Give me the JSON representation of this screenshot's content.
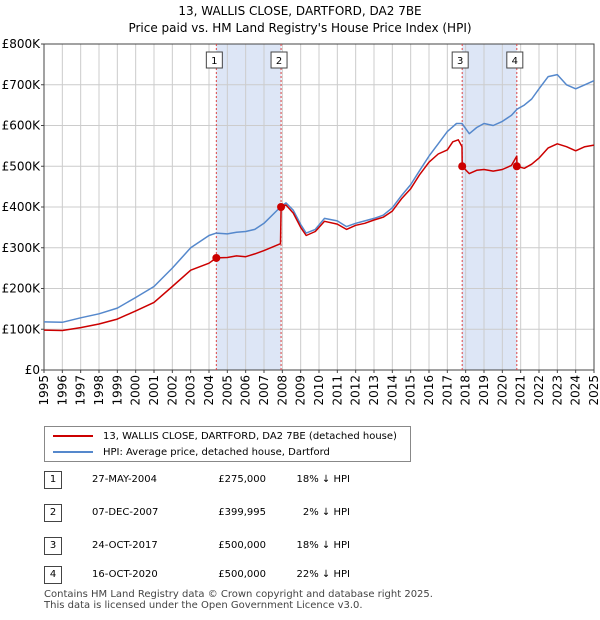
{
  "chart_data": {
    "type": "line",
    "title": "13, WALLIS CLOSE, DARTFORD, DA2 7BE",
    "subtitle": "Price paid vs. HM Land Registry's House Price Index (HPI)",
    "xlim": [
      1995,
      2025
    ],
    "ylim": [
      0,
      800000
    ],
    "x_ticks": [
      "1995",
      "1996",
      "1997",
      "1998",
      "1999",
      "2000",
      "2001",
      "2002",
      "2003",
      "2004",
      "2005",
      "2006",
      "2007",
      "2008",
      "2009",
      "2010",
      "2011",
      "2012",
      "2013",
      "2014",
      "2015",
      "2016",
      "2017",
      "2018",
      "2019",
      "2020",
      "2021",
      "2022",
      "2023",
      "2024",
      "2025"
    ],
    "y_ticks": [
      {
        "value": 0,
        "label": "£0"
      },
      {
        "value": 100000,
        "label": "£100K"
      },
      {
        "value": 200000,
        "label": "£200K"
      },
      {
        "value": 300000,
        "label": "£300K"
      },
      {
        "value": 400000,
        "label": "£400K"
      },
      {
        "value": 500000,
        "label": "£500K"
      },
      {
        "value": 600000,
        "label": "£600K"
      },
      {
        "value": 700000,
        "label": "£700K"
      },
      {
        "value": 800000,
        "label": "£800K"
      }
    ],
    "series": [
      {
        "name": "13, WALLIS CLOSE, DARTFORD, DA2 7BE (detached house)",
        "color": "#cc0000",
        "points": [
          [
            1995,
            98000
          ],
          [
            1996,
            97000
          ],
          [
            1997,
            104000
          ],
          [
            1998,
            113000
          ],
          [
            1999,
            125000
          ],
          [
            2000,
            145000
          ],
          [
            2001,
            166000
          ],
          [
            2002,
            205000
          ],
          [
            2003,
            245000
          ],
          [
            2004.0,
            262000
          ],
          [
            2004.4,
            275000
          ],
          [
            2005,
            276000
          ],
          [
            2005.5,
            280000
          ],
          [
            2006,
            278000
          ],
          [
            2006.5,
            285000
          ],
          [
            2007,
            293000
          ],
          [
            2007.9,
            310000
          ],
          [
            2007.93,
            399995
          ],
          [
            2008.2,
            405000
          ],
          [
            2008.6,
            385000
          ],
          [
            2009,
            350000
          ],
          [
            2009.3,
            330000
          ],
          [
            2009.8,
            340000
          ],
          [
            2010.3,
            365000
          ],
          [
            2011,
            358000
          ],
          [
            2011.5,
            345000
          ],
          [
            2012,
            355000
          ],
          [
            2012.5,
            360000
          ],
          [
            2013,
            368000
          ],
          [
            2013.5,
            375000
          ],
          [
            2014,
            390000
          ],
          [
            2014.5,
            420000
          ],
          [
            2015,
            445000
          ],
          [
            2015.5,
            480000
          ],
          [
            2016,
            510000
          ],
          [
            2016.5,
            530000
          ],
          [
            2017,
            540000
          ],
          [
            2017.3,
            560000
          ],
          [
            2017.6,
            565000
          ],
          [
            2017.8,
            548000
          ],
          [
            2017.81,
            500000
          ],
          [
            2018.2,
            482000
          ],
          [
            2018.6,
            490000
          ],
          [
            2019,
            492000
          ],
          [
            2019.5,
            488000
          ],
          [
            2020,
            492000
          ],
          [
            2020.5,
            502000
          ],
          [
            2020.79,
            525000
          ],
          [
            2020.8,
            500000
          ],
          [
            2021.2,
            495000
          ],
          [
            2021.6,
            505000
          ],
          [
            2022,
            520000
          ],
          [
            2022.5,
            545000
          ],
          [
            2023,
            555000
          ],
          [
            2023.5,
            548000
          ],
          [
            2024,
            538000
          ],
          [
            2024.5,
            548000
          ],
          [
            2025,
            552000
          ]
        ]
      },
      {
        "name": "HPI: Average price, detached house, Dartford",
        "color": "#5588cc",
        "points": [
          [
            1995,
            118000
          ],
          [
            1996,
            117000
          ],
          [
            1997,
            128000
          ],
          [
            1998,
            138000
          ],
          [
            1999,
            152000
          ],
          [
            2000,
            178000
          ],
          [
            2001,
            205000
          ],
          [
            2002,
            250000
          ],
          [
            2003,
            300000
          ],
          [
            2004,
            330000
          ],
          [
            2004.4,
            336000
          ],
          [
            2005,
            334000
          ],
          [
            2005.5,
            338000
          ],
          [
            2006,
            340000
          ],
          [
            2006.5,
            345000
          ],
          [
            2007,
            360000
          ],
          [
            2007.9,
            400000
          ],
          [
            2008.2,
            410000
          ],
          [
            2008.6,
            392000
          ],
          [
            2009,
            357000
          ],
          [
            2009.3,
            336000
          ],
          [
            2009.8,
            345000
          ],
          [
            2010.3,
            372000
          ],
          [
            2011,
            366000
          ],
          [
            2011.5,
            352000
          ],
          [
            2012,
            360000
          ],
          [
            2012.5,
            366000
          ],
          [
            2013,
            372000
          ],
          [
            2013.5,
            380000
          ],
          [
            2014,
            398000
          ],
          [
            2014.5,
            428000
          ],
          [
            2015,
            455000
          ],
          [
            2015.5,
            490000
          ],
          [
            2016,
            525000
          ],
          [
            2016.5,
            555000
          ],
          [
            2017,
            585000
          ],
          [
            2017.5,
            605000
          ],
          [
            2017.8,
            605000
          ],
          [
            2018.2,
            580000
          ],
          [
            2018.6,
            595000
          ],
          [
            2019,
            605000
          ],
          [
            2019.5,
            600000
          ],
          [
            2020,
            610000
          ],
          [
            2020.5,
            625000
          ],
          [
            2020.8,
            640000
          ],
          [
            2021.2,
            650000
          ],
          [
            2021.6,
            665000
          ],
          [
            2022,
            690000
          ],
          [
            2022.5,
            720000
          ],
          [
            2023,
            725000
          ],
          [
            2023.5,
            700000
          ],
          [
            2024,
            690000
          ],
          [
            2024.5,
            700000
          ],
          [
            2025,
            710000
          ]
        ]
      }
    ],
    "sales": [
      {
        "id": "1",
        "date": "27-MAY-2004",
        "x": 2004.4,
        "price": 275000,
        "price_label": "£275,000",
        "hpi_label": "18% ↓ HPI"
      },
      {
        "id": "2",
        "date": "07-DEC-2007",
        "x": 2007.93,
        "price": 399995,
        "price_label": "£399,995",
        "hpi_label": "2% ↓ HPI"
      },
      {
        "id": "3",
        "date": "24-OCT-2017",
        "x": 2017.81,
        "price": 500000,
        "price_label": "£500,000",
        "hpi_label": "18% ↓ HPI"
      },
      {
        "id": "4",
        "date": "16-OCT-2020",
        "x": 2020.79,
        "price": 500000,
        "price_label": "£500,000",
        "hpi_label": "22% ↓ HPI"
      }
    ],
    "shaded_ranges": [
      [
        2004.4,
        2007.93
      ],
      [
        2017.81,
        2020.79
      ]
    ],
    "legend": {
      "property_label": "13, WALLIS CLOSE, DARTFORD, DA2 7BE (detached house)",
      "hpi_label": "HPI: Average price, detached house, Dartford"
    }
  },
  "colors": {
    "property": "#cc0000",
    "hpi": "#5588cc",
    "shade": "#dde6f6",
    "grid": "#cccccc"
  },
  "footer": {
    "line1": "Contains HM Land Registry data © Crown copyright and database right 2025.",
    "line2": "This data is licensed under the Open Government Licence v3.0."
  }
}
